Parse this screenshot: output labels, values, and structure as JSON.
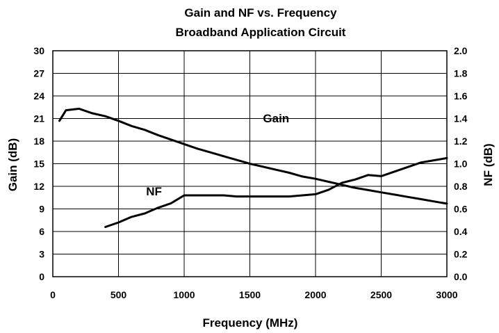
{
  "chart_data": {
    "type": "line",
    "title": "Gain and NF vs. Frequency",
    "subtitle": "Broadband Application Circuit",
    "xlabel": "Frequency (MHz)",
    "ylabel": "Gain (dB)",
    "y2label": "NF (dB)",
    "xlim": [
      0,
      3000
    ],
    "ylim": [
      0,
      30
    ],
    "y2lim": [
      0.0,
      2.0
    ],
    "grid": true,
    "x_ticks": [
      "0",
      "500",
      "1000",
      "1500",
      "2000",
      "2500",
      "3000"
    ],
    "y_ticks": [
      "0",
      "3",
      "6",
      "9",
      "12",
      "15",
      "18",
      "21",
      "24",
      "27",
      "30"
    ],
    "y2_ticks": [
      "0.0",
      "0.2",
      "0.4",
      "0.6",
      "0.8",
      "1.0",
      "1.2",
      "1.4",
      "1.6",
      "1.8",
      "2.0"
    ],
    "series": [
      {
        "name": "Gain",
        "axis": "left",
        "x": [
          50,
          100,
          200,
          300,
          400,
          500,
          600,
          700,
          800,
          900,
          1000,
          1100,
          1200,
          1300,
          1400,
          1500,
          1600,
          1700,
          1800,
          1900,
          2000,
          2100,
          2200,
          2300,
          2400,
          2500,
          2600,
          2700,
          2800,
          2900,
          3000
        ],
        "y": [
          20.7,
          22.1,
          22.3,
          21.7,
          21.3,
          20.7,
          20.0,
          19.5,
          18.8,
          18.2,
          17.6,
          17.0,
          16.5,
          16.0,
          15.5,
          15.0,
          14.6,
          14.2,
          13.8,
          13.3,
          13.0,
          12.6,
          12.2,
          11.8,
          11.5,
          11.2,
          10.9,
          10.6,
          10.3,
          10.0,
          9.7
        ]
      },
      {
        "name": "NF",
        "axis": "right",
        "x": [
          400,
          500,
          600,
          700,
          800,
          900,
          1000,
          1100,
          1200,
          1300,
          1400,
          1500,
          1600,
          1700,
          1800,
          1900,
          2000,
          2100,
          2200,
          2300,
          2400,
          2500,
          2600,
          2700,
          2800,
          2900,
          3000
        ],
        "y": [
          0.44,
          0.48,
          0.53,
          0.56,
          0.61,
          0.65,
          0.72,
          0.72,
          0.72,
          0.72,
          0.71,
          0.71,
          0.71,
          0.71,
          0.71,
          0.72,
          0.73,
          0.77,
          0.83,
          0.86,
          0.9,
          0.89,
          0.93,
          0.97,
          1.01,
          1.03,
          1.05
        ]
      }
    ],
    "annotations": [
      {
        "text": "Gain",
        "x": 1700,
        "y": 20.5,
        "axis": "left"
      },
      {
        "text": "NF",
        "x": 770,
        "y": 0.72,
        "axis": "right"
      }
    ]
  }
}
